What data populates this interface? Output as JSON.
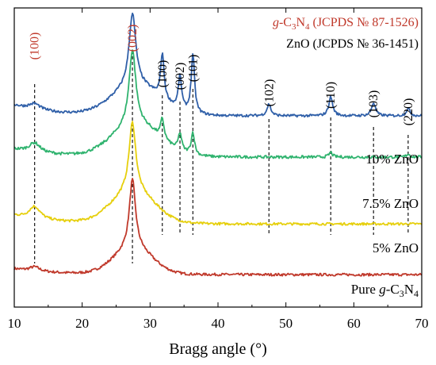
{
  "chart_data": {
    "type": "line",
    "xlabel": "Bragg angle (°)",
    "ylabel": "",
    "xlim": [
      10,
      70
    ],
    "x_ticks": [
      "10",
      "20",
      "30",
      "40",
      "50",
      "60",
      "70"
    ],
    "grid": false,
    "legend": {
      "gcn": {
        "prefix": "g",
        "dash": "-C",
        "sub1": "3",
        "mid": "N",
        "sub2": "4",
        "rest": " (JCPDS № 87-1526)",
        "color": "#c0392b"
      },
      "zno": {
        "text": "ZnO (JCPDS № 36-1451)",
        "color": "#000000"
      }
    },
    "reference_lines": {
      "gcn": [
        {
          "label": "(100)",
          "x": 13.0
        },
        {
          "label": "(002)",
          "x": 27.4
        }
      ],
      "zno": [
        {
          "label": "(100)",
          "x": 31.8
        },
        {
          "label": "(002)",
          "x": 34.4
        },
        {
          "label": "(101)",
          "x": 36.3
        },
        {
          "label": "(102)",
          "x": 47.5
        },
        {
          "label": "(110)",
          "x": 56.6
        },
        {
          "label": "(103)",
          "x": 62.9
        },
        {
          "label": "(220)",
          "x": 68.0
        }
      ]
    },
    "series": [
      {
        "name": "Pure g-C3N4",
        "label": {
          "prefix": "Pure ",
          "italic": "g",
          "dash": "-C",
          "sub1": "3",
          "mid": "N",
          "sub2": "4"
        },
        "color": "#c0392b",
        "baseline": 0.0,
        "peaks": [
          {
            "x": 13.0,
            "h": 0.06,
            "w": 0.9
          },
          {
            "x": 27.4,
            "h": 0.95,
            "w": 0.55
          }
        ],
        "humps": [
          {
            "x": 27.5,
            "h": 0.35,
            "w": 4.0
          }
        ],
        "tail": 0.08
      },
      {
        "name": "5% ZnO",
        "label": {
          "text": "5% ZnO"
        },
        "color": "#e6cf0c",
        "baseline": 1.0,
        "peaks": [
          {
            "x": 13.0,
            "h": 0.18,
            "w": 1.0
          },
          {
            "x": 27.4,
            "h": 1.0,
            "w": 0.6
          }
        ],
        "humps": [
          {
            "x": 27.5,
            "h": 0.45,
            "w": 4.5
          }
        ],
        "tail": 0.12
      },
      {
        "name": "7.5% ZnO",
        "label": {
          "text": "7.5% ZnO"
        },
        "color": "#2fb36e",
        "baseline": 2.05,
        "peaks": [
          {
            "x": 13.0,
            "h": 0.12,
            "w": 1.0
          },
          {
            "x": 27.4,
            "h": 0.95,
            "w": 0.6
          },
          {
            "x": 31.8,
            "h": 0.25,
            "w": 0.3
          },
          {
            "x": 34.4,
            "h": 0.22,
            "w": 0.3
          },
          {
            "x": 36.3,
            "h": 0.28,
            "w": 0.3
          },
          {
            "x": 56.6,
            "h": 0.06,
            "w": 0.3
          },
          {
            "x": 68.0,
            "h": 0.04,
            "w": 0.3
          }
        ],
        "humps": [
          {
            "x": 28.0,
            "h": 0.4,
            "w": 5.0
          }
        ],
        "tail": 0.1
      },
      {
        "name": "10% ZnO",
        "label": {
          "text": "10% ZnO"
        },
        "color": "#2f5fa8",
        "baseline": 3.0,
        "peaks": [
          {
            "x": 13.0,
            "h": 0.08,
            "w": 1.0
          },
          {
            "x": 27.4,
            "h": 1.0,
            "w": 0.6
          },
          {
            "x": 31.8,
            "h": 0.62,
            "w": 0.3
          },
          {
            "x": 34.4,
            "h": 0.45,
            "w": 0.3
          },
          {
            "x": 36.3,
            "h": 0.8,
            "w": 0.3
          },
          {
            "x": 47.5,
            "h": 0.16,
            "w": 0.35
          },
          {
            "x": 56.6,
            "h": 0.26,
            "w": 0.35
          },
          {
            "x": 62.9,
            "h": 0.18,
            "w": 0.35
          },
          {
            "x": 68.0,
            "h": 0.1,
            "w": 0.35
          }
        ],
        "humps": [
          {
            "x": 28.0,
            "h": 0.4,
            "w": 5.0
          }
        ],
        "tail": 0.15
      }
    ]
  }
}
